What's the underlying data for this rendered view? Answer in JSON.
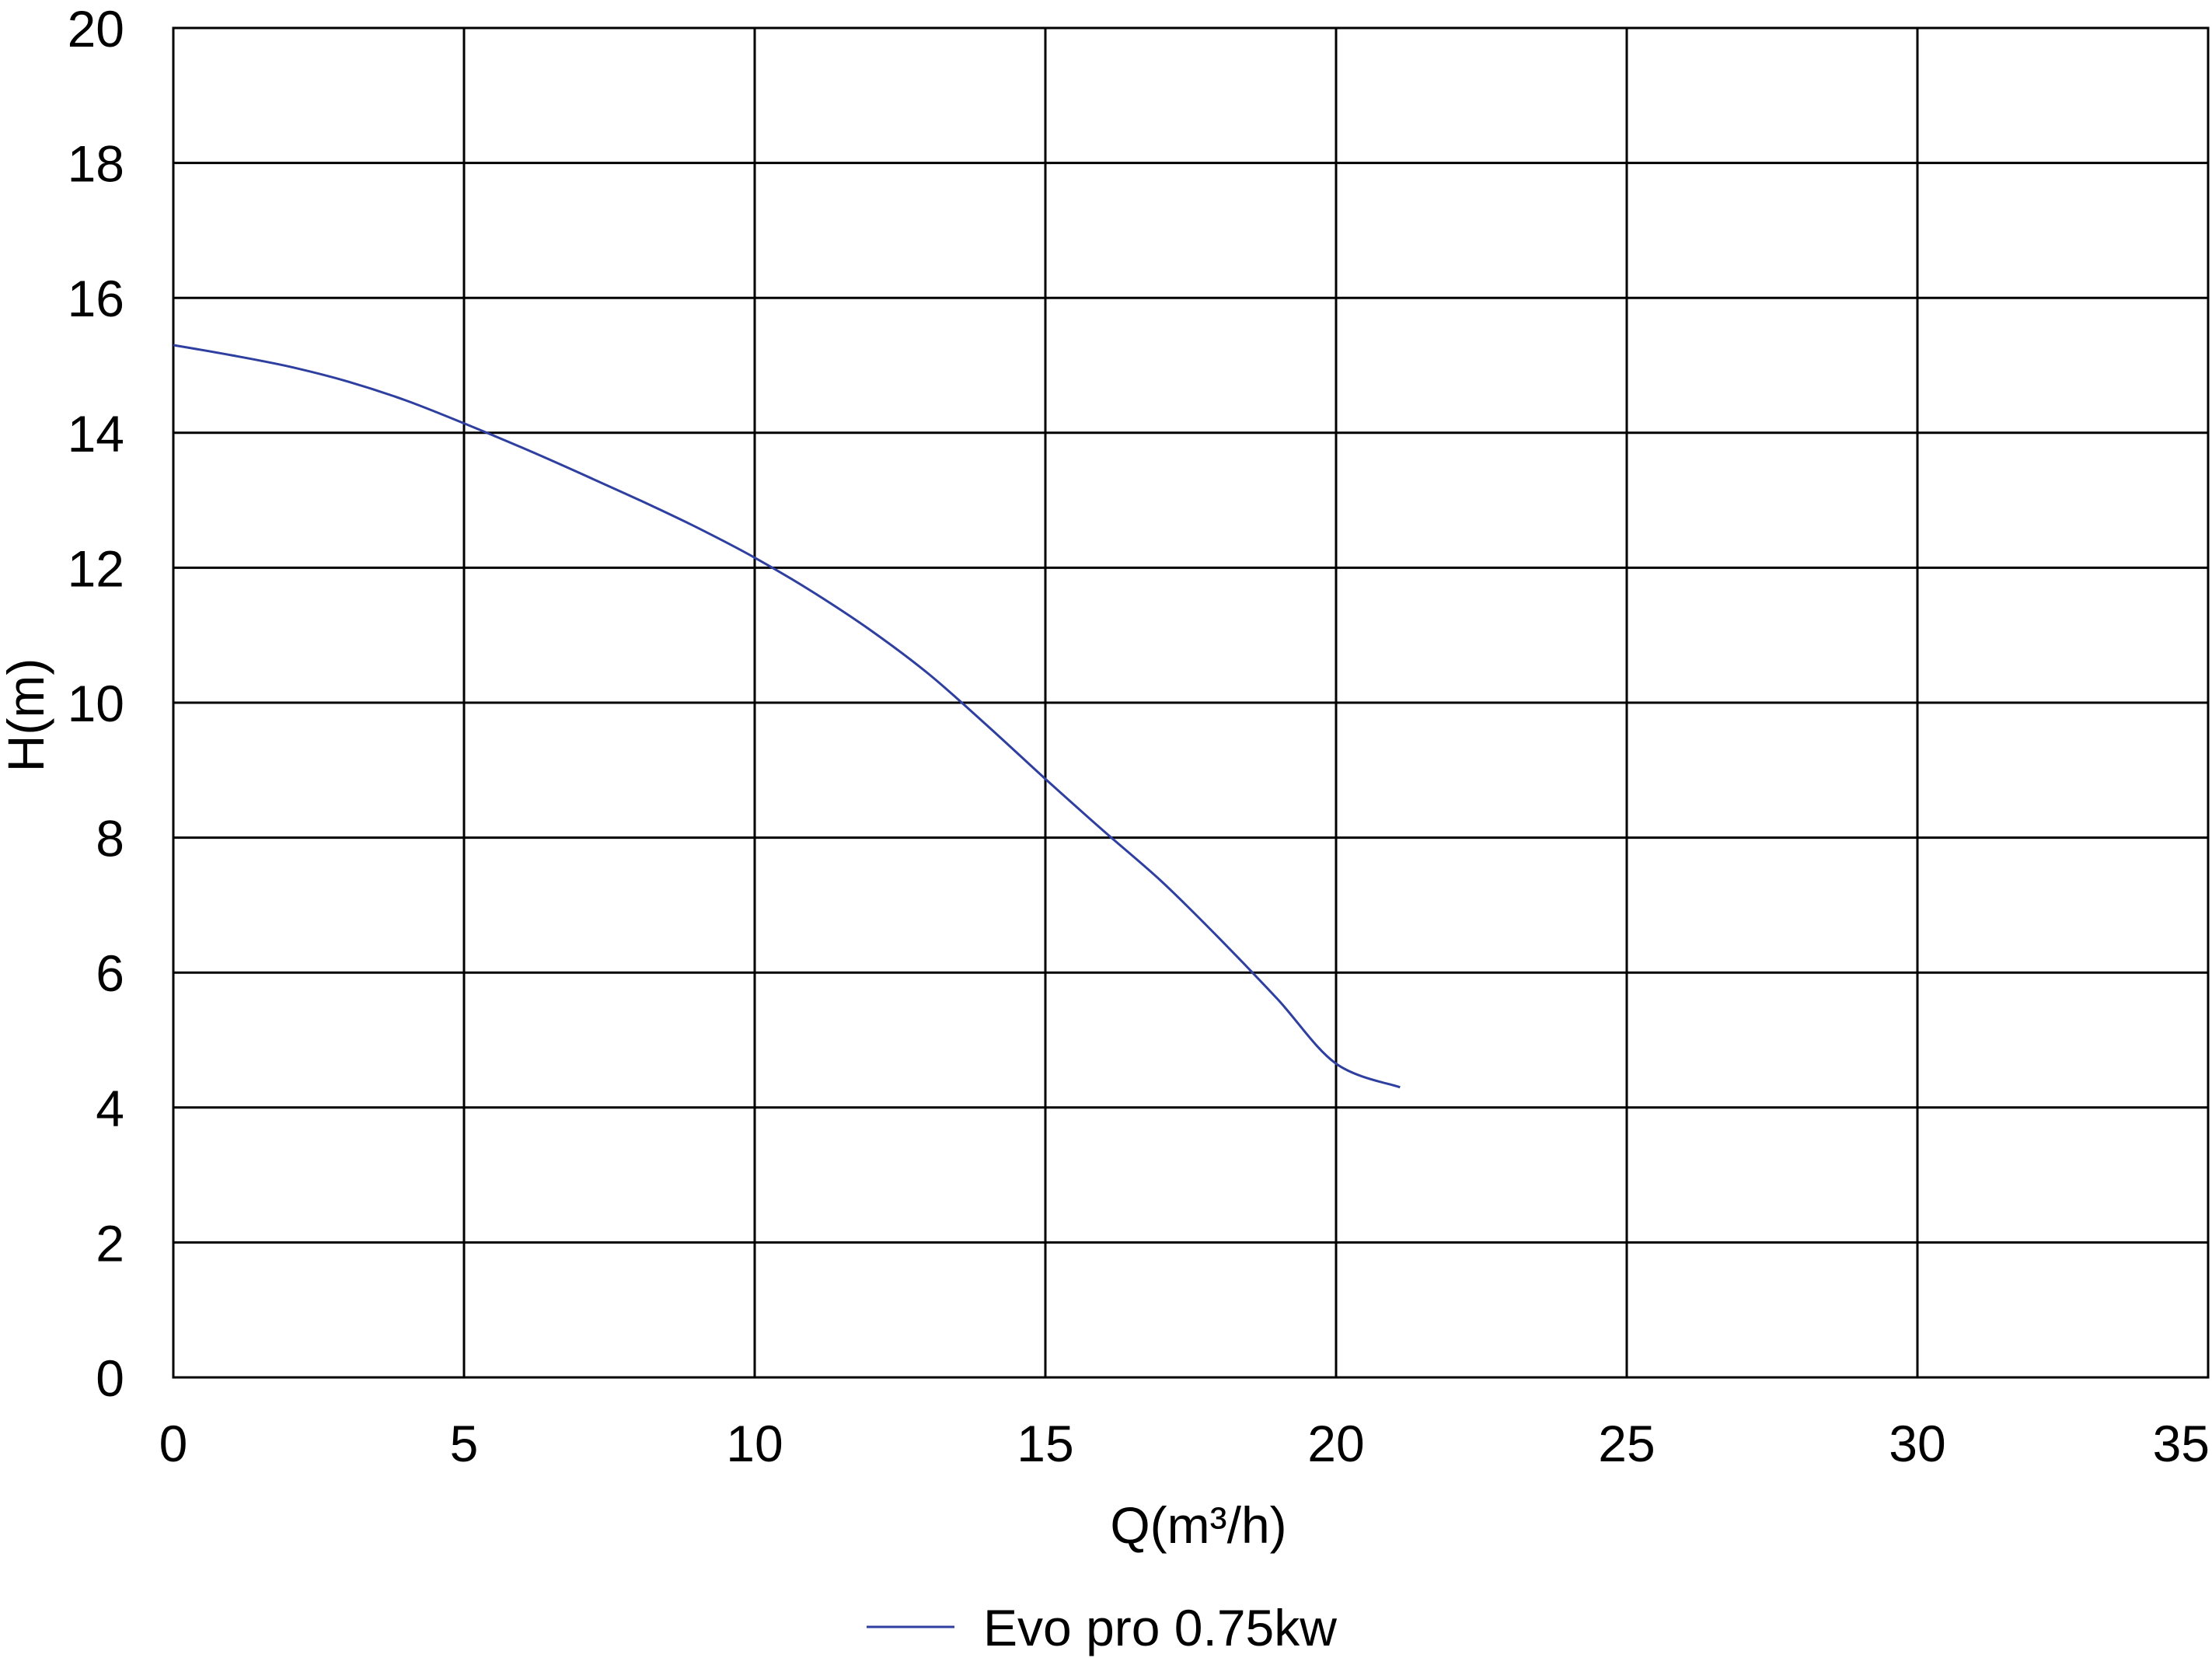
{
  "chart_data": {
    "type": "line",
    "title": "",
    "xlabel": "Q(m³/h)",
    "ylabel": "H(m)",
    "xlim": [
      0,
      35
    ],
    "ylim": [
      0,
      20
    ],
    "x_ticks": [
      0,
      5,
      10,
      15,
      20,
      25,
      30,
      35
    ],
    "y_ticks": [
      0,
      2,
      4,
      6,
      8,
      10,
      12,
      14,
      16,
      18,
      20
    ],
    "grid": true,
    "legend_position": "bottom-center",
    "series": [
      {
        "name": "Evo pro 0.75kw",
        "color": "#2e3fa0",
        "x": [
          0,
          1,
          2,
          3,
          4,
          5,
          6,
          7,
          8,
          9,
          10,
          11,
          12,
          13,
          14,
          15,
          16,
          17,
          18,
          19,
          20,
          21.1
        ],
        "y": [
          15.3,
          15.15,
          14.98,
          14.76,
          14.48,
          14.14,
          13.78,
          13.4,
          13.01,
          12.6,
          12.15,
          11.64,
          11.07,
          10.42,
          9.66,
          8.87,
          8.1,
          7.35,
          6.5,
          5.6,
          4.65,
          4.3
        ]
      }
    ]
  }
}
